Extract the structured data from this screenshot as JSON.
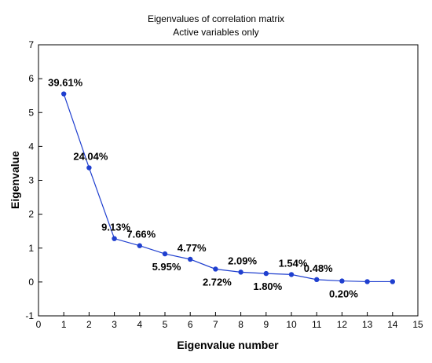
{
  "chart_data": {
    "type": "line",
    "title": "Eigenvalues of correlation matrix",
    "subtitle": "Active variables only",
    "xlabel": "Eigenvalue number",
    "ylabel": "Eigenvalue",
    "xlim": [
      0,
      15
    ],
    "ylim": [
      -1,
      7
    ],
    "x_ticks": [
      0,
      1,
      2,
      3,
      4,
      5,
      6,
      7,
      8,
      9,
      10,
      11,
      12,
      13,
      14,
      15
    ],
    "y_ticks": [
      -1,
      0,
      1,
      2,
      3,
      4,
      5,
      6,
      7
    ],
    "grid": false,
    "legend": "none",
    "series": [
      {
        "x": [
          1,
          2,
          3,
          4,
          5,
          6,
          7,
          8,
          9,
          10,
          11,
          12,
          13,
          14
        ],
        "values": [
          5.55,
          3.37,
          1.28,
          1.07,
          0.83,
          0.67,
          0.38,
          0.29,
          0.25,
          0.22,
          0.07,
          0.03,
          0.01,
          0.01
        ],
        "color": "#1f3fcf"
      }
    ],
    "data_labels": [
      {
        "x": 1,
        "text": "39.61%",
        "place": "above"
      },
      {
        "x": 2,
        "text": "24.04%",
        "place": "above"
      },
      {
        "x": 3,
        "text": "9.13%",
        "place": "above"
      },
      {
        "x": 4,
        "text": "7.66%",
        "place": "above"
      },
      {
        "x": 5,
        "text": "5.95%",
        "place": "below"
      },
      {
        "x": 6,
        "text": "4.77%",
        "place": "above"
      },
      {
        "x": 7,
        "text": "2.72%",
        "place": "below"
      },
      {
        "x": 8,
        "text": "2.09%",
        "place": "above"
      },
      {
        "x": 9,
        "text": "1.80%",
        "place": "below"
      },
      {
        "x": 10,
        "text": "1.54%",
        "place": "above"
      },
      {
        "x": 11,
        "text": "0.48%",
        "place": "above"
      },
      {
        "x": 12,
        "text": "0.20%",
        "place": "below"
      }
    ]
  }
}
